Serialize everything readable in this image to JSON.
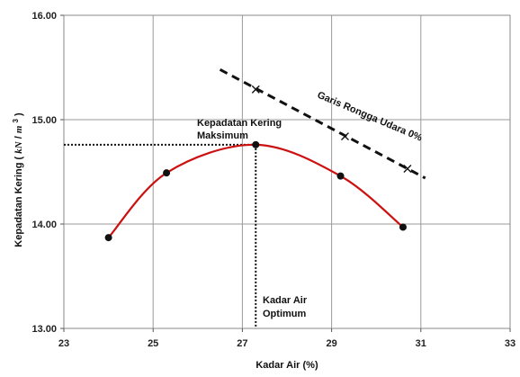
{
  "chart_data": {
    "type": "line",
    "xlabel": "Kadar Air (%)",
    "ylabel_text": "Kepadatan Kering",
    "ylabel_unit_open": "(",
    "ylabel_unit_kn": "kN",
    "ylabel_unit_slash": "/",
    "ylabel_unit_m": "m",
    "ylabel_unit_exp": "3",
    "ylabel_unit_close": ")",
    "xlim": [
      23,
      33
    ],
    "ylim": [
      13,
      16
    ],
    "x_ticks": [
      23,
      25,
      27,
      29,
      31,
      33
    ],
    "x_tick_labels": [
      "23",
      "25",
      "27",
      "29",
      "31",
      "33"
    ],
    "y_ticks": [
      13,
      14,
      15,
      16
    ],
    "y_tick_labels": [
      "13.00",
      "14.00",
      "15.00",
      "16.00"
    ],
    "grid": true,
    "compaction_points": {
      "x": [
        24.0,
        25.3,
        27.3,
        29.2,
        30.6
      ],
      "y": [
        13.87,
        14.49,
        14.76,
        14.46,
        13.97
      ]
    },
    "curve_color": "#cc1111",
    "point_color": "#111111",
    "zero_air_voids_line": {
      "start": [
        26.5,
        15.48
      ],
      "end": [
        31.1,
        14.44
      ],
      "marker_x": [
        27.3,
        29.3,
        30.7
      ],
      "marker_y": [
        15.29,
        14.84,
        14.53
      ],
      "label": "Garis Rongga Udara 0%"
    },
    "max_dry_density": {
      "x": 27.3,
      "y": 14.76,
      "label_line1": "Kepadatan Kering",
      "label_line2": "Maksimum"
    },
    "optimum_moisture": {
      "label_line1": "Kadar Air",
      "label_line2": "Optimum"
    }
  }
}
